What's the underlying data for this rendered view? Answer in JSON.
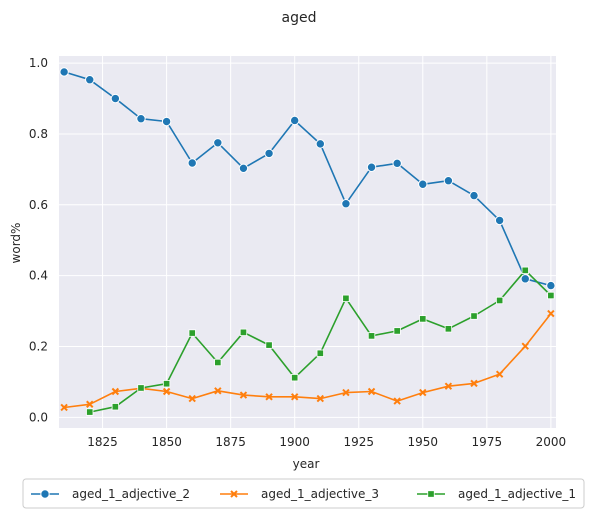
{
  "chart_data": {
    "type": "line",
    "title": "aged",
    "xlabel": "year",
    "ylabel": "word%",
    "xlim": [
      1808,
      2002
    ],
    "ylim": [
      -0.03,
      1.02
    ],
    "xticks": [
      1825,
      1850,
      1875,
      1900,
      1925,
      1950,
      1975,
      2000
    ],
    "yticks": [
      0.0,
      0.2,
      0.4,
      0.6,
      0.8,
      1.0
    ],
    "xtick_labels": [
      "1825",
      "1850",
      "1875",
      "1900",
      "1925",
      "1950",
      "1975",
      "2000"
    ],
    "ytick_labels": [
      "0.0",
      "0.2",
      "0.4",
      "0.6",
      "0.8",
      "1.0"
    ],
    "grid": true,
    "legend_position": "bottom",
    "series": [
      {
        "name": "aged_1_adjective_2",
        "color": "#1f77b4",
        "marker": "circle",
        "x": [
          1810,
          1820,
          1830,
          1840,
          1850,
          1860,
          1870,
          1880,
          1890,
          1900,
          1910,
          1920,
          1930,
          1940,
          1950,
          1960,
          1970,
          1980,
          1990,
          2000
        ],
        "y": [
          0.975,
          0.953,
          0.9,
          0.843,
          0.835,
          0.718,
          0.775,
          0.703,
          0.745,
          0.838,
          0.772,
          0.603,
          0.706,
          0.717,
          0.658,
          0.668,
          0.626,
          0.556,
          0.391,
          0.372
        ]
      },
      {
        "name": "aged_1_adjective_3",
        "color": "#ff7f0e",
        "marker": "x",
        "x": [
          1810,
          1820,
          1830,
          1840,
          1850,
          1860,
          1870,
          1880,
          1890,
          1900,
          1910,
          1920,
          1930,
          1940,
          1950,
          1960,
          1970,
          1980,
          1990,
          2000
        ],
        "y": [
          0.028,
          0.037,
          0.073,
          0.082,
          0.073,
          0.053,
          0.075,
          0.063,
          0.058,
          0.058,
          0.053,
          0.07,
          0.073,
          0.046,
          0.07,
          0.088,
          0.096,
          0.122,
          0.201,
          0.293
        ]
      },
      {
        "name": "aged_1_adjective_1",
        "color": "#2ca02c",
        "marker": "square",
        "x": [
          1820,
          1830,
          1840,
          1850,
          1860,
          1870,
          1880,
          1890,
          1900,
          1910,
          1920,
          1930,
          1940,
          1950,
          1960,
          1970,
          1980,
          1990,
          2000
        ],
        "y": [
          0.015,
          0.03,
          0.083,
          0.095,
          0.238,
          0.155,
          0.24,
          0.204,
          0.112,
          0.181,
          0.336,
          0.23,
          0.244,
          0.278,
          0.25,
          0.286,
          0.33,
          0.415,
          0.344
        ]
      }
    ]
  }
}
